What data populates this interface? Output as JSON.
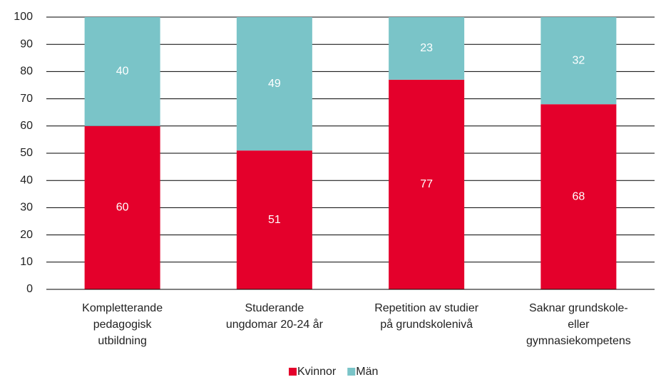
{
  "chart_data": {
    "type": "stacked_bar",
    "categories": [
      "Kompletterande\npedagogisk\nutbildning",
      "Studerande\nungdomar 20-24 år",
      "Repetition av studier\npå grundskolenivå",
      "Saknar grundskole-\neller\ngymnasiekompetens"
    ],
    "series": [
      {
        "name": "Kvinnor",
        "color": "#e4002b",
        "values": [
          60,
          51,
          77,
          68
        ]
      },
      {
        "name": "Män",
        "color": "#7ac4c8",
        "values": [
          40,
          49,
          23,
          32
        ]
      }
    ],
    "ylim": [
      0,
      100
    ],
    "yticks": [
      0,
      10,
      20,
      30,
      40,
      50,
      60,
      70,
      80,
      90,
      100
    ],
    "grid": true,
    "legend": "bottom"
  }
}
